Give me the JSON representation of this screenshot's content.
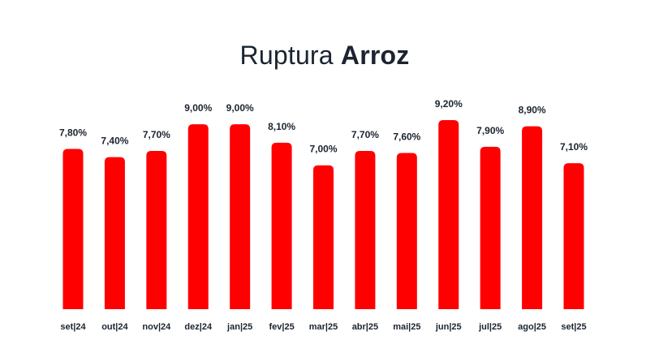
{
  "chart_data": {
    "type": "bar",
    "title": "Ruptura Arroz",
    "title_parts": {
      "light": "Ruptura",
      "bold": "Arroz"
    },
    "categories": [
      "set|24",
      "out|24",
      "nov|24",
      "dez|24",
      "jan|25",
      "fev|25",
      "mar|25",
      "abr|25",
      "mai|25",
      "jun|25",
      "jul|25",
      "ago|25",
      "set|25"
    ],
    "values": [
      7.8,
      7.4,
      7.7,
      9.0,
      9.0,
      8.1,
      7.0,
      7.7,
      7.6,
      9.2,
      7.9,
      8.9,
      7.1
    ],
    "value_labels": [
      "7,80%",
      "7,40%",
      "7,70%",
      "9,00%",
      "9,00%",
      "8,10%",
      "7,00%",
      "7,70%",
      "7,60%",
      "9,20%",
      "7,90%",
      "8,90%",
      "7,10%"
    ],
    "xlabel": "",
    "ylabel": "",
    "ylim": [
      0,
      9.2
    ],
    "grid": false,
    "bar_color": "#ff0000",
    "text_color": "#1b2430"
  }
}
